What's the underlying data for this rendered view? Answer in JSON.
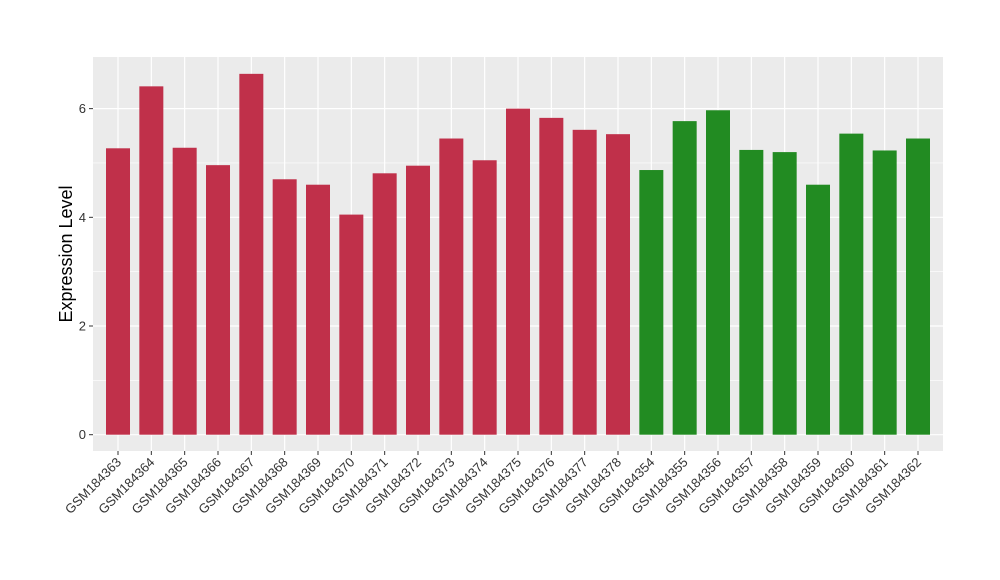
{
  "chart_data": {
    "type": "bar",
    "title": "",
    "xlabel": "",
    "ylabel": "Expression Level",
    "ylim": [
      -0.3,
      6.95
    ],
    "yticks": [
      0,
      2,
      4,
      6
    ],
    "grid": true,
    "legend": "none",
    "background_color": "#EBEBEB",
    "gridline_color": "#FFFFFF",
    "categories": [
      "GSM184363",
      "GSM184364",
      "GSM184365",
      "GSM184366",
      "GSM184367",
      "GSM184368",
      "GSM184369",
      "GSM184370",
      "GSM184371",
      "GSM184372",
      "GSM184373",
      "GSM184374",
      "GSM184375",
      "GSM184376",
      "GSM184377",
      "GSM184378",
      "GSM184354",
      "GSM184355",
      "GSM184356",
      "GSM184357",
      "GSM184358",
      "GSM184359",
      "GSM184360",
      "GSM184361",
      "GSM184362"
    ],
    "values": [
      5.27,
      6.41,
      5.28,
      4.96,
      6.64,
      4.7,
      4.6,
      4.05,
      4.81,
      4.95,
      5.45,
      5.05,
      6.0,
      5.83,
      5.61,
      5.53,
      4.87,
      5.77,
      5.97,
      5.24,
      5.2,
      4.6,
      5.54,
      5.23,
      5.45
    ],
    "bar_colors": [
      "#C0304A",
      "#C0304A",
      "#C0304A",
      "#C0304A",
      "#C0304A",
      "#C0304A",
      "#C0304A",
      "#C0304A",
      "#C0304A",
      "#C0304A",
      "#C0304A",
      "#C0304A",
      "#C0304A",
      "#C0304A",
      "#C0304A",
      "#C0304A",
      "#228B22",
      "#228B22",
      "#228B22",
      "#228B22",
      "#228B22",
      "#228B22",
      "#228B22",
      "#228B22",
      "#228B22"
    ]
  }
}
